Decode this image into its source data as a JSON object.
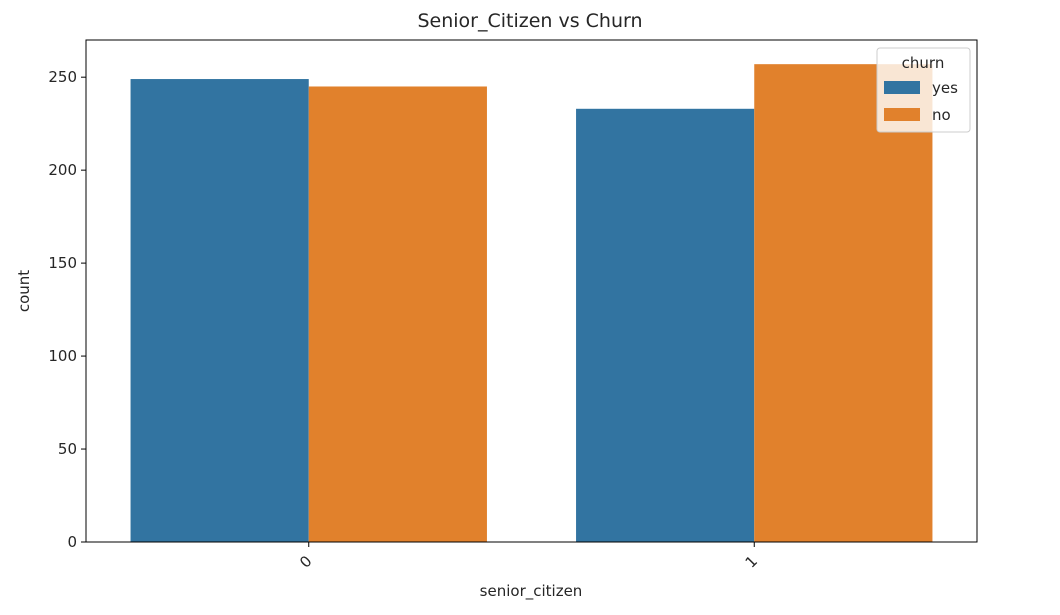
{
  "chart_data": {
    "type": "bar",
    "title": "Senior_Citizen vs Churn",
    "xlabel": "senior_citizen",
    "ylabel": "count",
    "categories": [
      "0",
      "1"
    ],
    "series": [
      {
        "name": "yes",
        "color": "#3274a1",
        "values": [
          249,
          233
        ]
      },
      {
        "name": "no",
        "color": "#e1812c",
        "values": [
          245,
          257
        ]
      }
    ],
    "ylim": [
      0,
      270
    ],
    "yticks": [
      0,
      50,
      100,
      150,
      200,
      250
    ],
    "ytick_labels": [
      "0",
      "50",
      "100",
      "150",
      "200",
      "250"
    ],
    "legend": {
      "title": "churn",
      "position": "top-right"
    },
    "grid": false
  }
}
